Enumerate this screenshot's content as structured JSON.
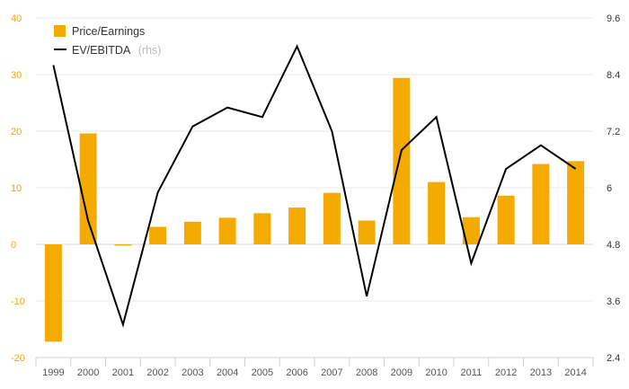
{
  "chart_data": {
    "type": "bar",
    "categories": [
      "1999",
      "2000",
      "2001",
      "2002",
      "2003",
      "2004",
      "2005",
      "2006",
      "2007",
      "2008",
      "2009",
      "2010",
      "2011",
      "2012",
      "2013",
      "2014"
    ],
    "series": [
      {
        "name": "Price/Earnings",
        "type": "bar",
        "axis": "left",
        "values": [
          -17.2,
          19.6,
          -0.2,
          3.1,
          4.0,
          4.7,
          5.5,
          6.5,
          9.1,
          4.2,
          29.4,
          11.0,
          4.8,
          8.6,
          14.2,
          14.7
        ]
      },
      {
        "name": "EV/EBITDA",
        "name_suffix": "(rhs)",
        "type": "line",
        "axis": "right",
        "values": [
          8.6,
          5.3,
          3.1,
          5.9,
          7.3,
          7.7,
          7.5,
          9.0,
          7.2,
          3.7,
          6.8,
          7.5,
          4.4,
          6.4,
          6.9,
          6.4
        ]
      }
    ],
    "y_left": {
      "ylim": [
        -20,
        40
      ],
      "ticks": [
        "-20",
        "-10",
        "0",
        "10",
        "20",
        "30",
        "40"
      ]
    },
    "y_right": {
      "ylim": [
        2.4,
        9.6
      ],
      "ticks": [
        "2.4",
        "3.6",
        "4.8",
        "6",
        "7.2",
        "8.4",
        "9.6"
      ]
    },
    "grid": true,
    "legend_position": "top-left",
    "colors": {
      "bar": "#f5aa00",
      "line": "#000000",
      "grid": "#e8e8e8",
      "left_ticks": "#f0a800",
      "right_ticks": "#333333"
    }
  }
}
